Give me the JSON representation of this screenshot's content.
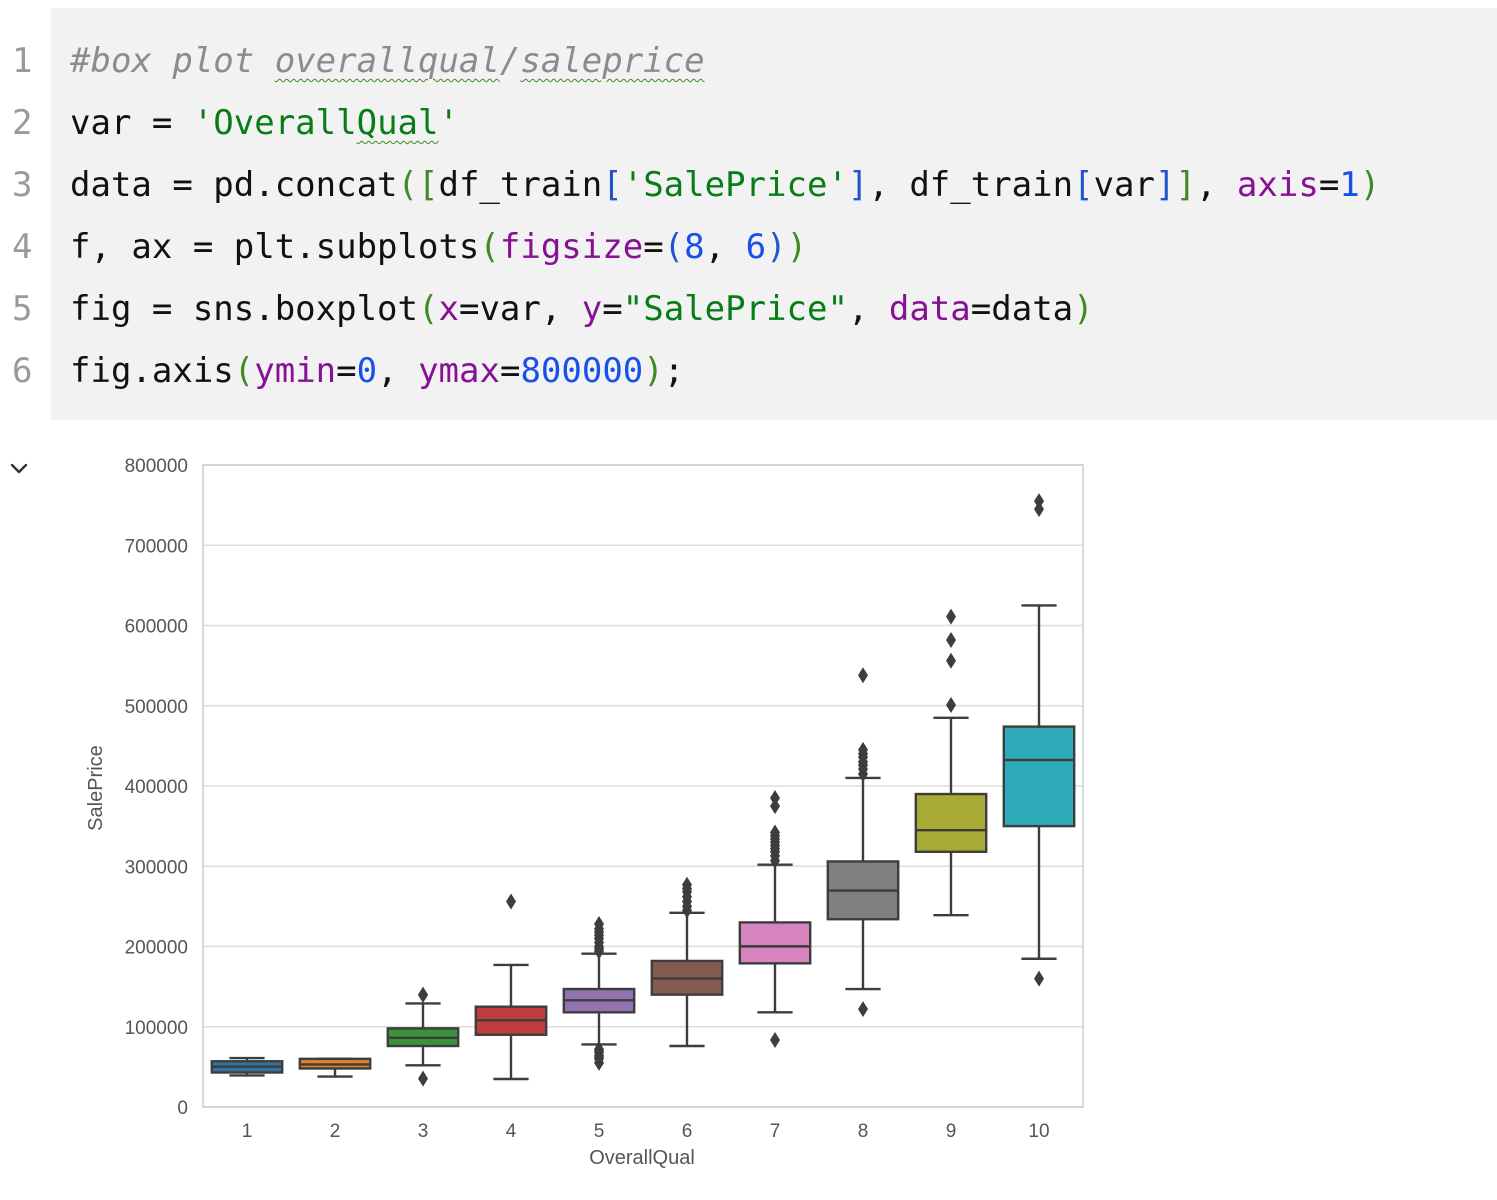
{
  "editor": {
    "lines": [
      {
        "number": "1",
        "tokens": [
          {
            "t": "#box plot ",
            "c": "cmt"
          },
          {
            "t": "overallqual",
            "c": "cmt squig"
          },
          {
            "t": "/",
            "c": "cmt"
          },
          {
            "t": "saleprice",
            "c": "cmt squig"
          }
        ]
      },
      {
        "number": "2",
        "tokens": [
          {
            "t": "var = ",
            "c": ""
          },
          {
            "t": "'Overall",
            "c": "str"
          },
          {
            "t": "Qual",
            "c": "str squig"
          },
          {
            "t": "'",
            "c": "str"
          }
        ]
      },
      {
        "number": "3",
        "tokens": [
          {
            "t": "data = pd.concat",
            "c": ""
          },
          {
            "t": "(",
            "c": "br"
          },
          {
            "t": "[",
            "c": "br"
          },
          {
            "t": "df_train",
            "c": ""
          },
          {
            "t": "[",
            "c": "bb"
          },
          {
            "t": "'SalePrice'",
            "c": "str"
          },
          {
            "t": "]",
            "c": "bb"
          },
          {
            "t": ", df_train",
            "c": ""
          },
          {
            "t": "[",
            "c": "bb"
          },
          {
            "t": "var",
            "c": ""
          },
          {
            "t": "]",
            "c": "bb"
          },
          {
            "t": "]",
            "c": "br"
          },
          {
            "t": ", ",
            "c": ""
          },
          {
            "t": "axis",
            "c": "kw"
          },
          {
            "t": "=",
            "c": ""
          },
          {
            "t": "1",
            "c": "num"
          },
          {
            "t": ")",
            "c": "br"
          }
        ]
      },
      {
        "number": "4",
        "tokens": [
          {
            "t": "f, ax = plt.subplots",
            "c": ""
          },
          {
            "t": "(",
            "c": "br"
          },
          {
            "t": "figsize",
            "c": "kw"
          },
          {
            "t": "=",
            "c": ""
          },
          {
            "t": "(",
            "c": "bb"
          },
          {
            "t": "8",
            "c": "num"
          },
          {
            "t": ", ",
            "c": ""
          },
          {
            "t": "6",
            "c": "num"
          },
          {
            "t": ")",
            "c": "bb"
          },
          {
            "t": ")",
            "c": "br"
          }
        ]
      },
      {
        "number": "5",
        "tokens": [
          {
            "t": "fig = sns.boxplot",
            "c": ""
          },
          {
            "t": "(",
            "c": "br"
          },
          {
            "t": "x",
            "c": "kw"
          },
          {
            "t": "=var, ",
            "c": ""
          },
          {
            "t": "y",
            "c": "kw"
          },
          {
            "t": "=",
            "c": ""
          },
          {
            "t": "\"SalePrice\"",
            "c": "str"
          },
          {
            "t": ", ",
            "c": ""
          },
          {
            "t": "data",
            "c": "kw"
          },
          {
            "t": "=data",
            "c": ""
          },
          {
            "t": ")",
            "c": "br"
          }
        ]
      },
      {
        "number": "6",
        "tokens": [
          {
            "t": "fig.axis",
            "c": ""
          },
          {
            "t": "(",
            "c": "br"
          },
          {
            "t": "ymin",
            "c": "kw"
          },
          {
            "t": "=",
            "c": ""
          },
          {
            "t": "0",
            "c": "num"
          },
          {
            "t": ", ",
            "c": ""
          },
          {
            "t": "ymax",
            "c": "kw"
          },
          {
            "t": "=",
            "c": ""
          },
          {
            "t": "800000",
            "c": "num"
          },
          {
            "t": ")",
            "c": "br"
          },
          {
            "t": ";",
            "c": ""
          }
        ]
      }
    ]
  },
  "output": {
    "collapse_icon": "chevron-down-icon"
  },
  "chart_data": {
    "type": "box",
    "xlabel": "OverallQual",
    "ylabel": "SalePrice",
    "ylim": [
      0,
      800000
    ],
    "yticks": [
      0,
      100000,
      200000,
      300000,
      400000,
      500000,
      600000,
      700000,
      800000
    ],
    "grid": true,
    "categories": [
      "1",
      "2",
      "3",
      "4",
      "5",
      "6",
      "7",
      "8",
      "9",
      "10"
    ],
    "colors": [
      "#3274a1",
      "#e1812c",
      "#3a923a",
      "#c03d3e",
      "#9372b2",
      "#845b53",
      "#d684bd",
      "#7f7f7f",
      "#a9aa35",
      "#2eabb8"
    ],
    "boxes": [
      {
        "whislo": 39300,
        "q1": 43000,
        "med": 50150,
        "q3": 57000,
        "whishi": 61000,
        "fliers": []
      },
      {
        "whislo": 37900,
        "q1": 48000,
        "med": 53000,
        "q3": 60000,
        "whishi": 60000,
        "fliers": []
      },
      {
        "whislo": 52000,
        "q1": 76000,
        "med": 86250,
        "q3": 98000,
        "whishi": 129000,
        "fliers": [
          35311,
          139600,
          140000
        ]
      },
      {
        "whislo": 34900,
        "q1": 90000,
        "med": 108000,
        "q3": 125000,
        "whishi": 177000,
        "fliers": [
          256000
        ]
      },
      {
        "whislo": 78000,
        "q1": 118000,
        "med": 133000,
        "q3": 147000,
        "whishi": 191000,
        "fliers": [
          55000,
          60000,
          62000,
          64000,
          68000,
          70000,
          72000,
          194000,
          197000,
          200000,
          205000,
          210000,
          214000,
          218000,
          222000,
          228000
        ]
      },
      {
        "whislo": 76000,
        "q1": 140000,
        "med": 160000,
        "q3": 182000,
        "whishi": 242000,
        "fliers": [
          245000,
          250000,
          256000,
          262000,
          268000,
          272000,
          277000
        ]
      },
      {
        "whislo": 118000,
        "q1": 179000,
        "med": 200141,
        "q3": 230000,
        "whishi": 302000,
        "fliers": [
          83500,
          307000,
          313000,
          318000,
          322000,
          326000,
          330000,
          334000,
          338000,
          342000,
          375000,
          385000
        ]
      },
      {
        "whislo": 147000,
        "q1": 234000,
        "med": 269750,
        "q3": 306000,
        "whishi": 410000,
        "fliers": [
          122000,
          415000,
          421000,
          426000,
          430000,
          436000,
          440000,
          445000,
          538000
        ]
      },
      {
        "whislo": 239000,
        "q1": 318000,
        "med": 345000,
        "q3": 390000,
        "whishi": 485000,
        "fliers": [
          501000,
          556000,
          582000,
          611000
        ]
      },
      {
        "whislo": 184750,
        "q1": 350000,
        "med": 432390,
        "q3": 474000,
        "whishi": 625000,
        "fliers": [
          160000,
          745000,
          755000
        ]
      }
    ]
  }
}
